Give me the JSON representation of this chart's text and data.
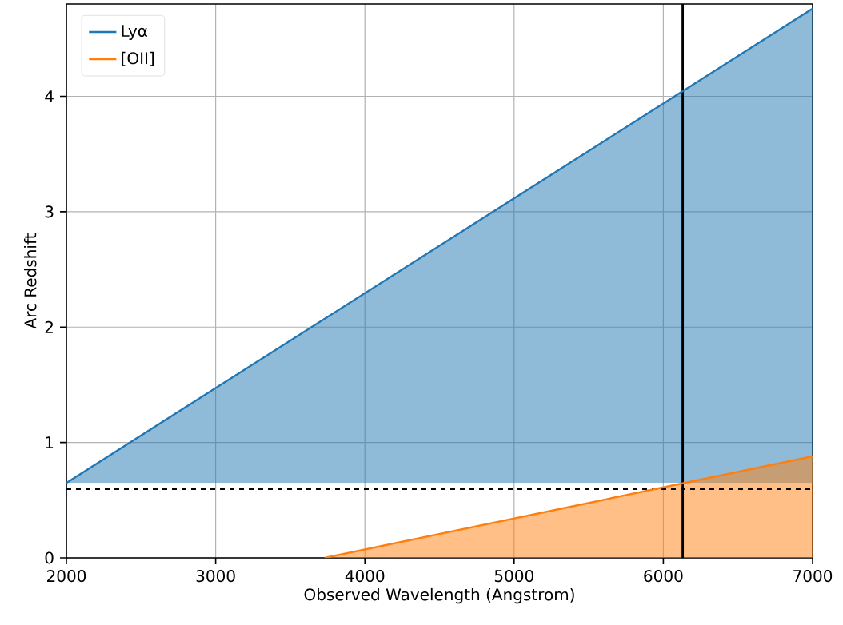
{
  "chart_data": {
    "type": "line",
    "xlabel": "Observed Wavelength (Angstrom)",
    "ylabel": "Arc Redshift",
    "series": [
      {
        "name": "Lyα",
        "color": "#1f77b4",
        "x": [
          2000,
          7000
        ],
        "values": [
          0.65,
          4.76
        ],
        "lower": [
          0.65,
          0.65
        ],
        "upper": [
          0.65,
          4.76
        ]
      },
      {
        "name": "[OII]",
        "color": "#ff7f0e",
        "x": [
          3730,
          7000
        ],
        "values": [
          0,
          0.88
        ],
        "lower": [
          0,
          0
        ],
        "upper": [
          0,
          0.88
        ]
      }
    ],
    "xlim": [
      2000,
      7000
    ],
    "ylim": [
      0,
      4.8
    ],
    "xticks": [
      2000,
      3000,
      4000,
      5000,
      6000,
      7000
    ],
    "yticks": [
      0,
      1,
      2,
      3,
      4
    ],
    "ref_lines": [
      {
        "axis": "y",
        "value": 0.6,
        "color": "#000000",
        "line_style": "dashed"
      },
      {
        "axis": "x",
        "value": 6130,
        "color": "#000000",
        "line_style": "solid"
      }
    ],
    "grid": true,
    "legend": "top left",
    "marker": "none",
    "line_style": "solid"
  }
}
